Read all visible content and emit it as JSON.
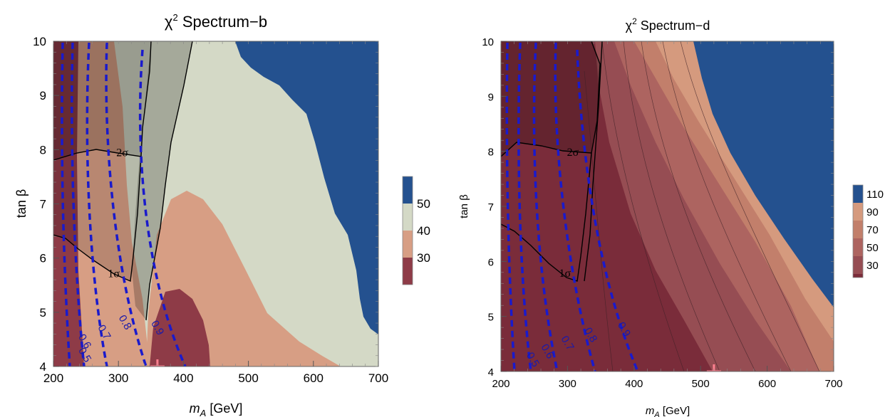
{
  "chart_data": [
    {
      "type": "heatmap",
      "title_prefix": "χ",
      "title_sup": "2",
      "title_main": " Spectrum−b",
      "xlabel_base": "m",
      "xlabel_sub": "A",
      "xlabel_unit": " [GeV]",
      "ylabel": "tan β",
      "xlim": [
        200,
        700
      ],
      "ylim": [
        4,
        10
      ],
      "x_ticks": [
        200,
        300,
        400,
        500,
        600,
        700
      ],
      "y_ticks": [
        4,
        5,
        6,
        7,
        8,
        9,
        10
      ],
      "colorbar": {
        "labels": [
          "50",
          "40",
          "30"
        ],
        "levels": [
          50,
          40,
          30
        ],
        "colors": [
          "#24518f",
          "#d4d9c6",
          "#d79e84",
          "#8e3b47"
        ]
      },
      "sigma_labels": [
        "1σ",
        "2σ"
      ],
      "sigma_label_points": [
        {
          "x": 302,
          "y": 5.65
        },
        {
          "x": 315,
          "y": 7.88
        }
      ],
      "dashed_contour_labels": [
        "0.5",
        "0.6",
        "0.7",
        "0.8",
        "0.9"
      ],
      "dashed_label_points": [
        {
          "x": 238,
          "y": 4.3
        },
        {
          "x": 238,
          "y": 4.55
        },
        {
          "x": 268,
          "y": 4.72
        },
        {
          "x": 300,
          "y": 4.9
        },
        {
          "x": 350,
          "y": 4.8
        }
      ],
      "best_fit": {
        "x": 360,
        "y": 4.0
      },
      "grid": true,
      "legend_position": "right"
    },
    {
      "type": "heatmap",
      "title_prefix": "χ",
      "title_sup": "2",
      "title_main": " Spectrum−d",
      "xlabel_base": "m",
      "xlabel_sub": "A",
      "xlabel_unit": " [GeV]",
      "ylabel": "tan β",
      "xlim": [
        200,
        700
      ],
      "ylim": [
        4,
        10
      ],
      "x_ticks": [
        200,
        300,
        400,
        500,
        600,
        700
      ],
      "y_ticks": [
        4,
        5,
        6,
        7,
        8,
        9,
        10
      ],
      "colorbar": {
        "labels": [
          "110",
          "90",
          "70",
          "50",
          "30"
        ],
        "levels": [
          110,
          90,
          70,
          50,
          30
        ],
        "colors": [
          "#24518f",
          "#d59a7e",
          "#c27f6b",
          "#ad6460",
          "#964d53",
          "#7a2c3a"
        ]
      },
      "sigma_labels": [
        "1σ",
        "2σ"
      ],
      "sigma_label_points": [
        {
          "x": 305,
          "y": 5.72
        },
        {
          "x": 317,
          "y": 7.92
        }
      ],
      "dashed_contour_labels": [
        "0.5",
        "0.6",
        "0.7",
        "0.8",
        "0.9"
      ],
      "dashed_label_points": [
        {
          "x": 238,
          "y": 4.3
        },
        {
          "x": 260,
          "y": 4.45
        },
        {
          "x": 290,
          "y": 4.6
        },
        {
          "x": 325,
          "y": 4.75
        },
        {
          "x": 375,
          "y": 4.85
        }
      ],
      "best_fit": {
        "x": 520,
        "y": 4.0
      },
      "grid": true,
      "legend_position": "right"
    }
  ]
}
